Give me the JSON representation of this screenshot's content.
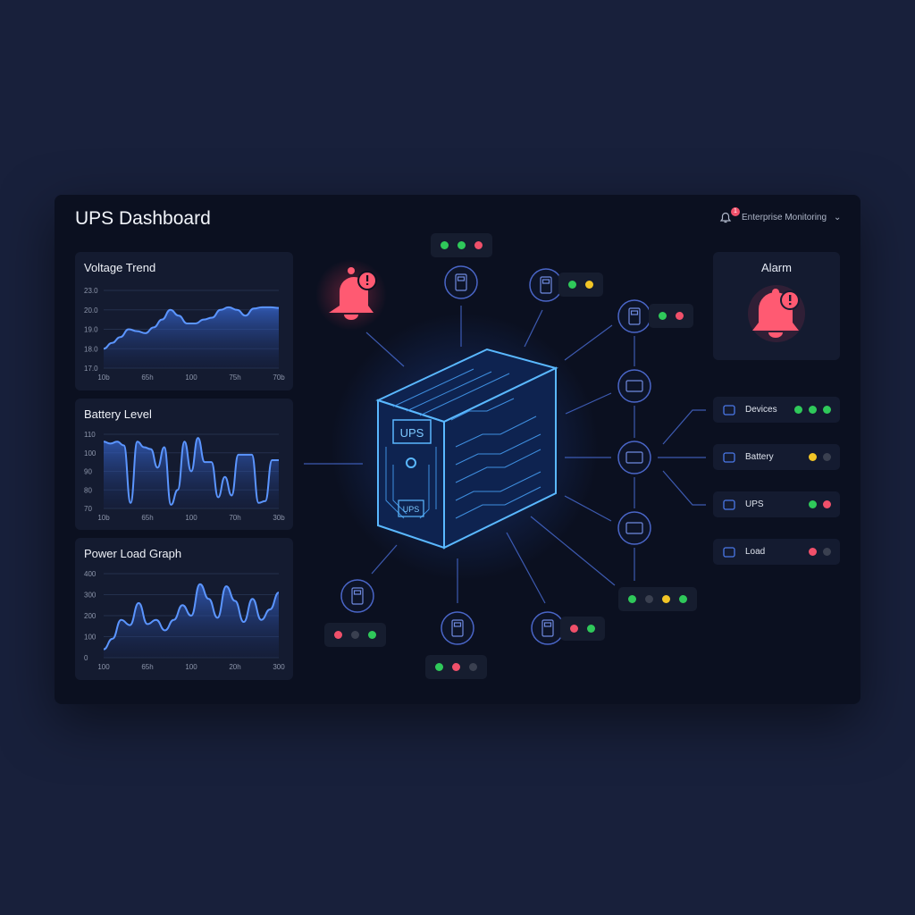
{
  "header": {
    "title": "UPS Dashboard",
    "notification_count": "1",
    "account": "Enterprise Monitoring"
  },
  "colors": {
    "green": "#2fc95a",
    "yellow": "#f2c526",
    "red": "#f0506a",
    "gray": "#3a4050",
    "accent": "#4d8cff",
    "alarm": "#ff5a72"
  },
  "chart_data": [
    {
      "type": "area",
      "title": "Voltage Trend",
      "yticks": [
        "23.0",
        "20.0",
        "19.0",
        "18.0",
        "17.0"
      ],
      "ytick_values": [
        23,
        20,
        19,
        18,
        17
      ],
      "xticks": [
        "10b",
        "65h",
        "100",
        "75h",
        "70b"
      ],
      "values": [
        18.0,
        18.3,
        18.6,
        19.0,
        18.9,
        18.8,
        19.1,
        19.5,
        20.0,
        19.7,
        19.3,
        19.3,
        19.5,
        19.6,
        20.0,
        20.4,
        20.0,
        19.7,
        20.2,
        20.4,
        20.4,
        20.3
      ]
    },
    {
      "type": "line",
      "title": "Battery Level",
      "yticks": [
        "110",
        "100",
        "90",
        "80",
        "70"
      ],
      "ytick_values": [
        110,
        100,
        90,
        80,
        70
      ],
      "xticks": [
        "10b",
        "65h",
        "100",
        "70h",
        "30b"
      ],
      "values": [
        106,
        105,
        106,
        104,
        73,
        106,
        103,
        102,
        92,
        103,
        72,
        80,
        106,
        90,
        108,
        95,
        95,
        76,
        87,
        77,
        99,
        99,
        99,
        73,
        74,
        96,
        96
      ]
    },
    {
      "type": "area",
      "title": "Power Load Graph",
      "yticks": [
        "400",
        "300",
        "200",
        "100",
        "0"
      ],
      "ytick_values": [
        400,
        300,
        200,
        100,
        0
      ],
      "xticks": [
        "100",
        "65h",
        "100",
        "20h",
        "300"
      ],
      "values": [
        40,
        90,
        180,
        155,
        260,
        160,
        180,
        130,
        180,
        250,
        200,
        350,
        280,
        190,
        340,
        270,
        170,
        280,
        180,
        230,
        310
      ]
    }
  ],
  "alarm": {
    "title": "Alarm"
  },
  "side_items": [
    {
      "label": "Devices",
      "icon": "server-icon",
      "dots": [
        "green",
        "green",
        "green"
      ]
    },
    {
      "label": "Battery",
      "icon": "battery-icon",
      "dots": [
        "yellow",
        "gray"
      ]
    },
    {
      "label": "UPS",
      "icon": "plug-shield-icon",
      "dots": [
        "green",
        "red"
      ]
    },
    {
      "label": "Load",
      "icon": "power-plug-icon",
      "dots": [
        "red",
        "gray"
      ]
    }
  ],
  "ups": {
    "front_label": "UPS",
    "base_label": "UPS"
  },
  "nodes": [
    {
      "icon": "heart-device-icon",
      "dots": [
        "green",
        "green",
        "red"
      ]
    },
    {
      "icon": "device-icon",
      "dots": [
        "green",
        "yellow"
      ]
    },
    {
      "icon": "device-icon",
      "dots": [
        "green",
        "red"
      ]
    },
    {
      "icon": "monitor-icon",
      "dots": []
    },
    {
      "icon": "battery-pack-icon",
      "dots": []
    },
    {
      "icon": "display-icon",
      "dots": [
        "green",
        "gray",
        "yellow",
        "green"
      ]
    },
    {
      "icon": "device-icon",
      "dots": [
        "red",
        "green"
      ]
    },
    {
      "icon": "circuit-board-icon",
      "dots": [
        "green",
        "red",
        "gray"
      ]
    },
    {
      "icon": "server-rack-icon",
      "dots": [
        "red",
        "gray",
        "green"
      ]
    }
  ]
}
